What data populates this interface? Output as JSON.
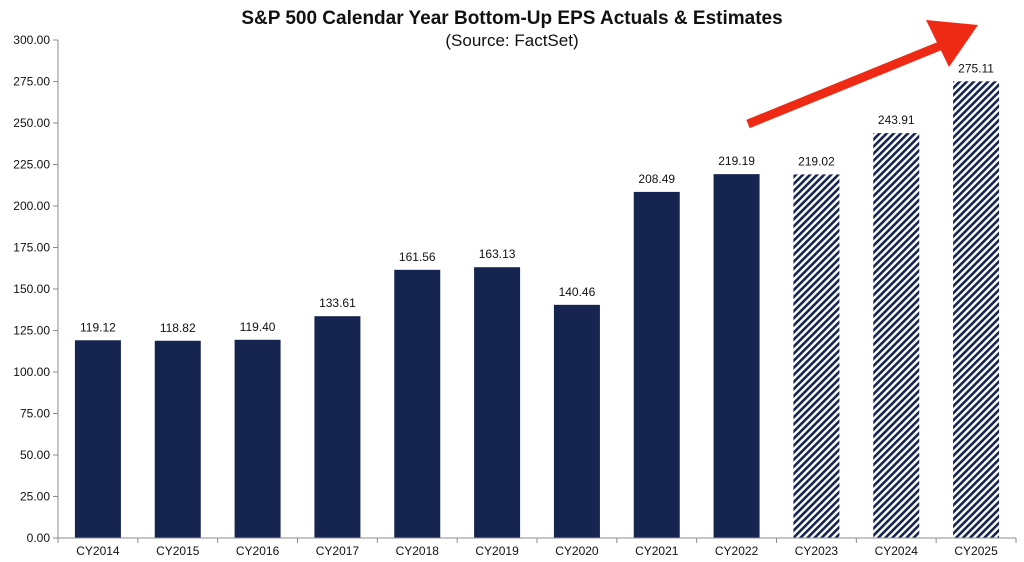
{
  "chart_data": {
    "type": "bar",
    "title": "S&P 500 Calendar Year Bottom-Up EPS Actuals & Estimates",
    "subtitle": "(Source: FactSet)",
    "xlabel": "",
    "ylabel": "",
    "categories": [
      "CY2014",
      "CY2015",
      "CY2016",
      "CY2017",
      "CY2018",
      "CY2019",
      "CY2020",
      "CY2021",
      "CY2022",
      "CY2023",
      "CY2024",
      "CY2025"
    ],
    "values": [
      119.12,
      118.82,
      119.4,
      133.61,
      161.56,
      163.13,
      140.46,
      208.49,
      219.19,
      219.02,
      243.91,
      275.11
    ],
    "value_labels": [
      "119.12",
      "118.82",
      "119.40",
      "133.61",
      "161.56",
      "163.13",
      "140.46",
      "208.49",
      "219.19",
      "219.02",
      "243.91",
      "275.11"
    ],
    "bar_style": [
      "actual",
      "actual",
      "actual",
      "actual",
      "actual",
      "actual",
      "actual",
      "actual",
      "actual",
      "estimate",
      "estimate",
      "estimate"
    ],
    "ylim": [
      0,
      300
    ],
    "yticks": [
      "0.00",
      "25.00",
      "50.00",
      "75.00",
      "100.00",
      "125.00",
      "150.00",
      "175.00",
      "200.00",
      "225.00",
      "250.00",
      "275.00",
      "300.00"
    ],
    "grid": false,
    "legend": "none",
    "annotation": "red-up-arrow",
    "colors": {
      "actual_bar": "#15254f",
      "estimate_stripe": "#15254f",
      "estimate_bg": "#ffffff",
      "arrow": "#ee2a14",
      "axis": "#8c8c8c"
    }
  }
}
